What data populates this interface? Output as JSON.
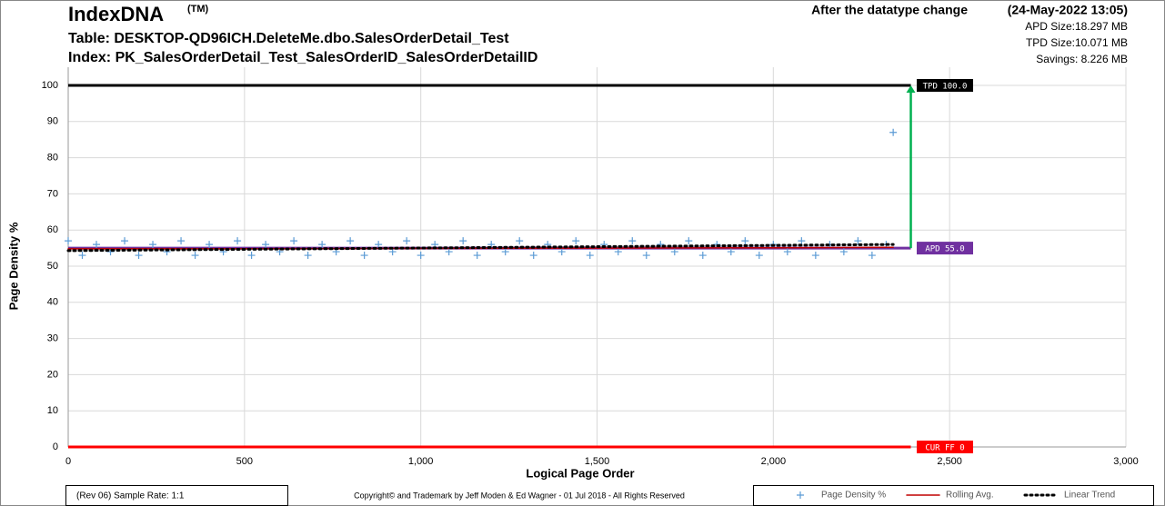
{
  "chart_data": {
    "type": "scatter",
    "title": "IndexDNA",
    "title_mark": "(TM)",
    "subtitle_table": "Table: DESKTOP-QD96ICH.DeleteMe.dbo.SalesOrderDetail_Test",
    "subtitle_index": "Index: PK_SalesOrderDetail_Test_SalesOrderID_SalesOrderDetailID",
    "status": "After the datatype change",
    "timestamp": "(24-May-2022 13:05)",
    "size_notes": [
      "APD Size:18.297  MB",
      "TPD Size:10.071  MB",
      "Savings: 8.226  MB"
    ],
    "x_label": "Logical Page Order",
    "y_label": "Page Density %",
    "footer_left": "(Rev 06) Sample Rate: 1:1",
    "footer_center": "Copyright©  and Trademark by Jeff Moden & Ed Wagner - 01 Jul 2018 - All Rights Reserved",
    "xlim": [
      0,
      3000
    ],
    "ylim": [
      0,
      100
    ],
    "xticks": [
      0,
      500,
      {
        "value": 1000,
        "label": "1,000"
      },
      {
        "value": 1500,
        "label": "1,500"
      },
      {
        "value": 2000,
        "label": "2,000"
      },
      {
        "value": 2500,
        "label": "2,500"
      },
      {
        "value": 3000,
        "label": "3,000"
      }
    ],
    "yticks": [
      0,
      10,
      20,
      30,
      40,
      50,
      60,
      70,
      80,
      90,
      100
    ],
    "grid": true,
    "series": [
      {
        "name": "Page Density %",
        "color": "#5b9bd5",
        "style": "marker",
        "x": [
          0,
          40,
          80,
          120,
          160,
          200,
          240,
          280,
          320,
          360,
          400,
          440,
          480,
          520,
          560,
          600,
          640,
          680,
          720,
          760,
          800,
          840,
          880,
          920,
          960,
          1000,
          1040,
          1080,
          1120,
          1160,
          1200,
          1240,
          1280,
          1320,
          1360,
          1400,
          1440,
          1480,
          1520,
          1560,
          1600,
          1640,
          1680,
          1720,
          1760,
          1800,
          1840,
          1880,
          1920,
          1960,
          2000,
          2040,
          2080,
          2120,
          2160,
          2200,
          2240,
          2280,
          2320,
          2340
        ],
        "values": [
          57,
          53,
          56,
          54,
          57,
          53,
          56,
          54,
          57,
          53,
          56,
          54,
          57,
          53,
          56,
          54,
          57,
          53,
          56,
          54,
          57,
          53,
          56,
          54,
          57,
          53,
          56,
          54,
          57,
          53,
          56,
          54,
          57,
          53,
          56,
          54,
          57,
          53,
          56,
          54,
          57,
          53,
          56,
          54,
          57,
          53,
          56,
          54,
          57,
          53,
          56,
          54,
          57,
          53,
          56,
          54,
          57,
          53,
          56,
          87
        ]
      },
      {
        "name": "Rolling Avg.",
        "color": "#c00000",
        "style": "line",
        "x": [
          0,
          1000,
          2000,
          2340
        ],
        "values": [
          54.8,
          54.9,
          55.1,
          55.2
        ]
      },
      {
        "name": "Linear Trend",
        "color": "#000000",
        "style": "dots",
        "x": [
          0,
          2340
        ],
        "values": [
          54.3,
          56
        ]
      }
    ],
    "reference_lines": [
      {
        "name": "TPD 100.0",
        "value": 100,
        "x": [
          0,
          2390
        ],
        "color": "#000000"
      },
      {
        "name": "APD 55.0",
        "value": 55,
        "x": [
          0,
          2390
        ],
        "color": "#7030a0"
      },
      {
        "name": "CUR FF 0",
        "value": 0,
        "x": [
          0,
          2390
        ],
        "color": "#ff0000"
      }
    ],
    "arrow": {
      "x": 2390,
      "from": 55,
      "to": 100,
      "color": "#00b050"
    }
  }
}
